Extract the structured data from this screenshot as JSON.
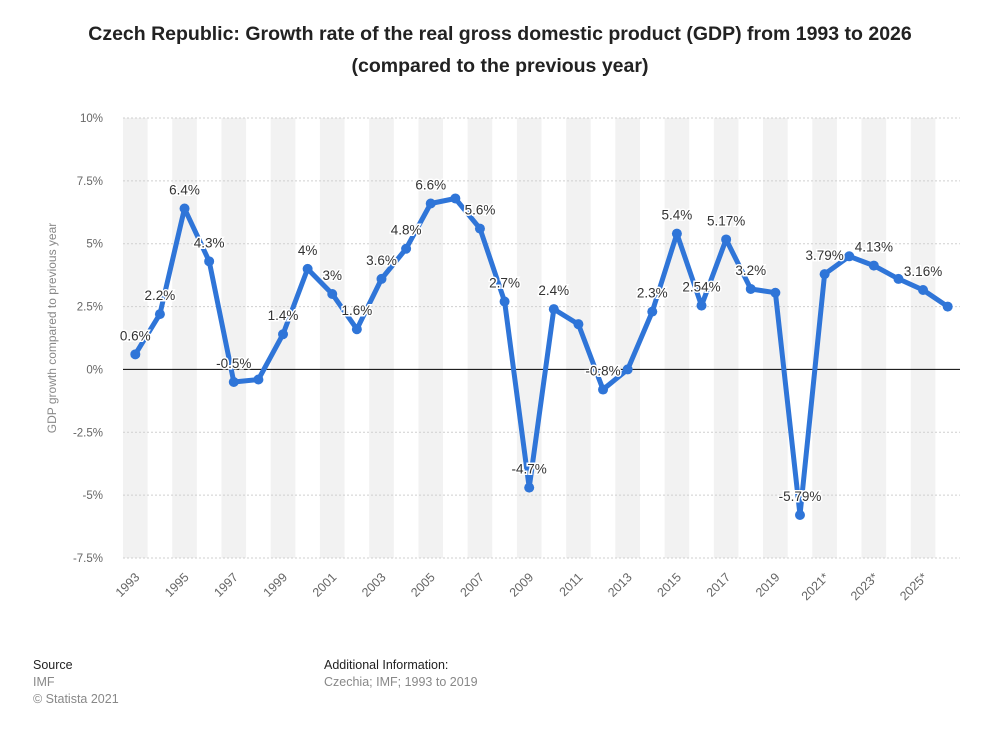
{
  "title": "Czech Republic: Growth rate of the real gross domestic product (GDP) from 1993 to 2026 (compared to the previous year)",
  "footer": {
    "source_label": "Source",
    "source_value": "IMF",
    "copyright": "© Statista 2021",
    "additional_label": "Additional Information:",
    "additional_value": "Czechia; IMF; 1993 to 2019"
  },
  "colors": {
    "line": "#2f75d8",
    "band": "#f2f2f2",
    "grid": "#cfcfcf",
    "zero": "#000000",
    "label": "#333333",
    "axis_text": "#666666"
  },
  "chart_data": {
    "type": "line",
    "title": "Czech Republic: Growth rate of the real gross domestic product (GDP) from 1993 to 2026 (compared to the previous year)",
    "ylabel": "GDP growth compared to previous year",
    "xlabel": "",
    "ylim": [
      -7.5,
      10
    ],
    "yticks": [
      -7.5,
      -5,
      -2.5,
      0,
      2.5,
      5,
      7.5,
      10
    ],
    "ytick_labels": [
      "-7.5%",
      "-5%",
      "-2.5%",
      "0%",
      "2.5%",
      "5%",
      "7.5%",
      "10%"
    ],
    "x": [
      "1993",
      "1994",
      "1995",
      "1996",
      "1997",
      "1998",
      "1999",
      "2000",
      "2001",
      "2002",
      "2003",
      "2004",
      "2005",
      "2006",
      "2007",
      "2008",
      "2009",
      "2010",
      "2011",
      "2012",
      "2013",
      "2014",
      "2015",
      "2016",
      "2017",
      "2018",
      "2019",
      "2020",
      "2021*",
      "2022*",
      "2023*",
      "2024*",
      "2025*",
      "2026*"
    ],
    "xtick_labels": [
      "1993",
      "",
      "1995",
      "",
      "1997",
      "",
      "1999",
      "",
      "2001",
      "",
      "2003",
      "",
      "2005",
      "",
      "2007",
      "",
      "2009",
      "",
      "2011",
      "",
      "2013",
      "",
      "2015",
      "",
      "2017",
      "",
      "2019",
      "",
      "2021*",
      "",
      "2023*",
      "",
      "2025*",
      ""
    ],
    "grid": true,
    "series": [
      {
        "values": [
          0.6,
          2.2,
          6.4,
          4.3,
          -0.5,
          -0.4,
          1.4,
          4,
          3,
          1.6,
          3.6,
          4.8,
          6.6,
          6.8,
          5.6,
          2.7,
          -4.7,
          2.4,
          1.8,
          -0.8,
          0,
          2.3,
          5.4,
          2.54,
          5.17,
          3.2,
          3.05,
          -5.79,
          3.79,
          4.5,
          4.13,
          3.6,
          3.16,
          2.5
        ],
        "labels": [
          "0.6%",
          "2.2%",
          "6.4%",
          "4.3%",
          "-0.5%",
          "",
          "1.4%",
          "4%",
          "3%",
          "1.6%",
          "3.6%",
          "4.8%",
          "6.6%",
          "",
          "5.6%",
          "2.7%",
          "-4.7%",
          "2.4%",
          "",
          "-0.8%",
          "",
          "2.3%",
          "5.4%",
          "2.54%",
          "5.17%",
          "3.2%",
          "",
          "-5.79%",
          "3.79%",
          "",
          "4.13%",
          "",
          "3.16%",
          ""
        ]
      }
    ]
  }
}
